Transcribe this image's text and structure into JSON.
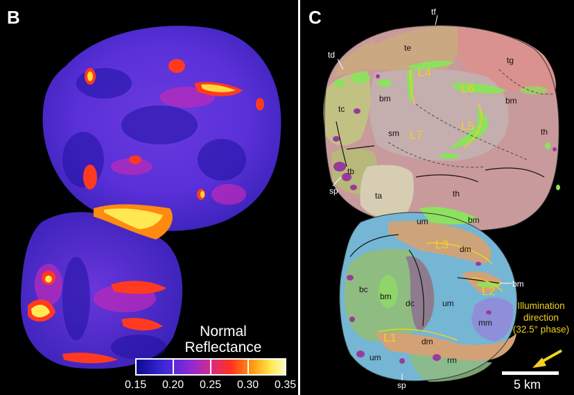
{
  "panel_b": {
    "letter": "B",
    "colorbar": {
      "title_line1": "Normal",
      "title_line2": "Reflectance",
      "ticks": [
        "0.15",
        "0.20",
        "0.25",
        "0.30",
        "0.35"
      ],
      "colors": [
        "#0a0a8c",
        "#3a28d8",
        "#8a2ad6",
        "#d62a8c",
        "#ff3020",
        "#ff9a10",
        "#ffe850",
        "#fff8c0"
      ]
    }
  },
  "panel_c": {
    "letter": "C",
    "unit_labels": {
      "tf": "tf",
      "td": "td",
      "te": "te",
      "tg": "tg",
      "tc": "tc",
      "sm": "sm",
      "tb": "tb",
      "ta": "ta",
      "th_right": "th",
      "th_bottom": "th",
      "sp_upper": "sp",
      "bm_left": "bm",
      "bm_right": "bm",
      "bm_neck": "bm",
      "um_top": "um",
      "dm_top": "dm",
      "bc": "bc",
      "bm_lobe": "bm",
      "dc": "dc",
      "um_mid": "um",
      "mm": "mm",
      "dm_bottom": "dm",
      "um_bottom": "um",
      "rm": "rm",
      "sp_lower": "sp",
      "bm_callout": "bm"
    },
    "lineament_labels": {
      "L1": "L1",
      "L2": "L2",
      "L3": "L3",
      "L4": "L4",
      "L5": "L5",
      "L6": "L6",
      "L7": "L7"
    },
    "illumination": {
      "line1": "Illumination",
      "line2": "direction",
      "line3": "(32.5° phase)"
    },
    "scale_bar": "5 km",
    "colors": {
      "te": "#c9a882",
      "tg": "#d9928e",
      "tc": "#c2c184",
      "sm": "#c4aeae",
      "th": "#c99a9b",
      "ta": "#d7cdb3",
      "bm": "#8ee060",
      "um": "#74b6d4",
      "dm": "#d2a276",
      "bc": "#8fbc80",
      "dc": "#8e7c8e",
      "mm": "#8e8fd8",
      "sp": "#9a3a9a",
      "lineament": "#f2d11f"
    }
  }
}
